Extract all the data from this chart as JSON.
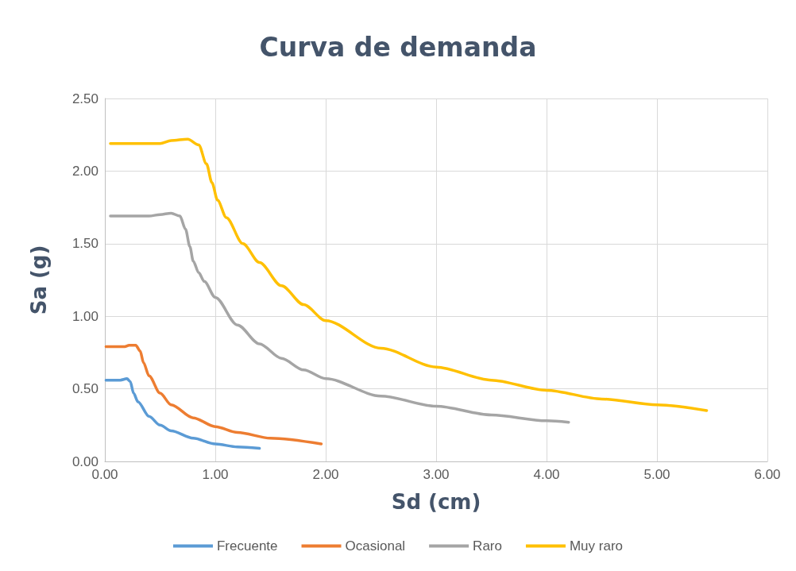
{
  "chart_data": {
    "type": "line",
    "title": "Curva de demanda",
    "xlabel": "Sd (cm)",
    "ylabel": "Sa (g)",
    "xlim": [
      0,
      6
    ],
    "ylim": [
      0,
      2.5
    ],
    "xticks": [
      {
        "value": 0,
        "label": "0.00"
      },
      {
        "value": 1,
        "label": "1.00"
      },
      {
        "value": 2,
        "label": "2.00"
      },
      {
        "value": 3,
        "label": "3.00"
      },
      {
        "value": 4,
        "label": "4.00"
      },
      {
        "value": 5,
        "label": "5.00"
      },
      {
        "value": 6,
        "label": "6.00"
      }
    ],
    "yticks": [
      {
        "value": 0,
        "label": "0.00"
      },
      {
        "value": 0.5,
        "label": "0.50"
      },
      {
        "value": 1,
        "label": "1.00"
      },
      {
        "value": 1.5,
        "label": "1.50"
      },
      {
        "value": 2,
        "label": "2.00"
      },
      {
        "value": 2.5,
        "label": "2.50"
      }
    ],
    "grid": true,
    "legend": "bottom",
    "marker": "none",
    "line_style": "solid",
    "series": [
      {
        "name": "Frecuente",
        "color": "#5b9bd5",
        "x": [
          0.01,
          0.14,
          0.2,
          0.23,
          0.26,
          0.3,
          0.4,
          0.5,
          0.6,
          0.8,
          1.0,
          1.2,
          1.4
        ],
        "values": [
          0.56,
          0.56,
          0.57,
          0.55,
          0.47,
          0.41,
          0.31,
          0.25,
          0.21,
          0.16,
          0.12,
          0.1,
          0.09
        ]
      },
      {
        "name": "Ocasional",
        "color": "#ed7d31",
        "x": [
          0.01,
          0.18,
          0.22,
          0.28,
          0.32,
          0.35,
          0.4,
          0.5,
          0.6,
          0.8,
          1.0,
          1.2,
          1.5,
          1.96
        ],
        "values": [
          0.79,
          0.79,
          0.8,
          0.8,
          0.76,
          0.68,
          0.59,
          0.47,
          0.39,
          0.3,
          0.24,
          0.2,
          0.16,
          0.12
        ]
      },
      {
        "name": "Raro",
        "color": "#a5a5a5",
        "x": [
          0.05,
          0.4,
          0.5,
          0.6,
          0.68,
          0.73,
          0.77,
          0.8,
          0.85,
          0.9,
          1.0,
          1.2,
          1.4,
          1.6,
          1.8,
          2.0,
          2.5,
          3.0,
          3.5,
          4.0,
          4.2
        ],
        "values": [
          1.69,
          1.69,
          1.7,
          1.71,
          1.69,
          1.6,
          1.48,
          1.38,
          1.3,
          1.24,
          1.13,
          0.94,
          0.81,
          0.71,
          0.63,
          0.57,
          0.45,
          0.38,
          0.32,
          0.28,
          0.27
        ]
      },
      {
        "name": "Muy raro",
        "color": "#ffc000",
        "x": [
          0.05,
          0.5,
          0.6,
          0.75,
          0.85,
          0.92,
          0.97,
          1.02,
          1.1,
          1.25,
          1.4,
          1.6,
          1.8,
          2.0,
          2.5,
          3.0,
          3.5,
          4.0,
          4.5,
          5.0,
          5.45
        ],
        "values": [
          2.19,
          2.19,
          2.21,
          2.22,
          2.18,
          2.05,
          1.92,
          1.8,
          1.68,
          1.5,
          1.37,
          1.21,
          1.08,
          0.97,
          0.78,
          0.65,
          0.56,
          0.49,
          0.43,
          0.39,
          0.35
        ]
      }
    ]
  }
}
